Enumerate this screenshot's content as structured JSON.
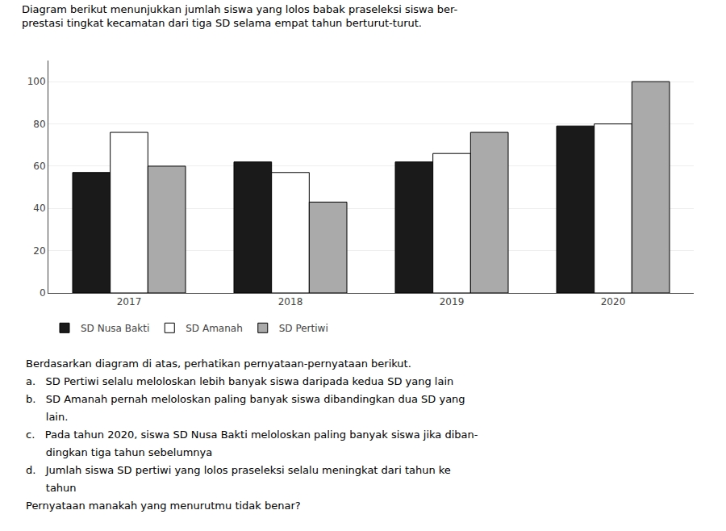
{
  "chart_data": {
    "type": "bar",
    "title": "Diagram berikut menunjukkan jumlah siswa yang lolos babak praseleksi siswa ber-",
    "subtitle": "prestasi tingkat kecamatan dari tiga SD selama empat tahun berturut-turut.",
    "categories": [
      "2017",
      "2018",
      "2019",
      "2020"
    ],
    "series": [
      {
        "name": "SD Nusa Bakti",
        "color": "#1a1a1a",
        "values": [
          57,
          62,
          62,
          79
        ]
      },
      {
        "name": "SD Amanah",
        "color": "#ffffff",
        "values": [
          76,
          57,
          66,
          80
        ]
      },
      {
        "name": "SD Pertiwi",
        "color": "#aaaaaa",
        "values": [
          60,
          43,
          76,
          100
        ]
      }
    ],
    "ylim": [
      0,
      110
    ],
    "yticks": [
      0,
      20,
      40,
      60,
      80,
      100
    ],
    "grid": true,
    "legend": "bottom",
    "annotations": [
      "Berdasarkan diagram di atas, perhatikan pernyataan-pernyataan berikut.",
      "a.   SD Pertiwi selalu meloloskan lebih banyak siswa daripada kedua SD yang lain",
      "b.   SD Amanah pernah meloloskan paling banyak siswa dibandingkan dua SD yang",
      "      lain.",
      "c.   Pada tahun 2020, siswa SD Nusa Bakti meloloskan paling banyak siswa jika diban-",
      "      dingkan tiga tahun sebelumnya",
      "d.   Jumlah siswa SD pertiwi yang lolos praseleksi selalu meningkat dari tahun ke",
      "      tahun",
      "Pernyataan manakah yang menurutmu tidak benar?"
    ]
  }
}
